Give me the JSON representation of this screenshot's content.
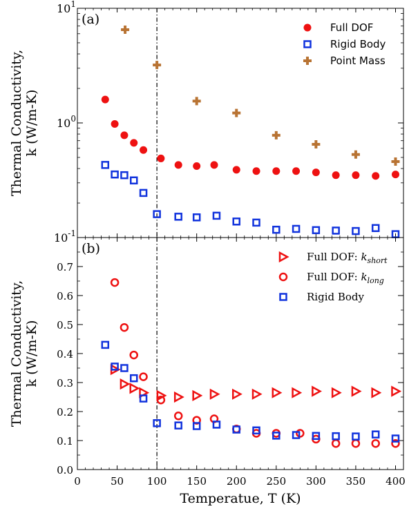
{
  "chart_data": [
    {
      "panel_label": "(a)",
      "type": "scatter",
      "yscale": "log",
      "xlim": [
        0,
        410
      ],
      "ylim": [
        0.1,
        10
      ],
      "ylabel_line1": "Thermal Conductivity,",
      "ylabel_line2": "k (W/m-K)",
      "yticks": [
        {
          "value": 10,
          "base": "10",
          "exp": "1"
        },
        {
          "value": 1,
          "base": "10",
          "exp": "0"
        },
        {
          "value": 0.1,
          "base": "10",
          "exp": "-1"
        }
      ],
      "vline_x": 100,
      "legend_position": "top-right",
      "series": [
        {
          "name": "Full DOF",
          "marker": "filled-circle",
          "color": "#ee1111",
          "x": [
            35,
            47,
            59,
            71,
            83,
            105,
            127,
            150,
            172,
            200,
            225,
            250,
            275,
            300,
            325,
            350,
            375,
            400
          ],
          "y": [
            1.6,
            0.98,
            0.78,
            0.67,
            0.58,
            0.49,
            0.43,
            0.42,
            0.43,
            0.39,
            0.38,
            0.38,
            0.38,
            0.37,
            0.35,
            0.35,
            0.345,
            0.355
          ]
        },
        {
          "name": "Rigid Body",
          "marker": "open-square",
          "color": "#1133dd",
          "x": [
            35,
            47,
            59,
            71,
            83,
            100,
            127,
            150,
            175,
            200,
            225,
            250,
            275,
            300,
            325,
            350,
            375,
            400
          ],
          "y": [
            0.43,
            0.355,
            0.35,
            0.315,
            0.245,
            0.16,
            0.152,
            0.15,
            0.155,
            0.138,
            0.135,
            0.117,
            0.119,
            0.116,
            0.115,
            0.114,
            0.121,
            0.107
          ]
        },
        {
          "name": "Point Mass",
          "marker": "plus",
          "color": "#b87333",
          "x": [
            60,
            100,
            150,
            200,
            250,
            300,
            350,
            400
          ],
          "y": [
            6.5,
            3.2,
            1.55,
            1.22,
            0.78,
            0.65,
            0.53,
            0.46
          ]
        }
      ]
    },
    {
      "panel_label": "(b)",
      "type": "scatter",
      "xlim": [
        0,
        410
      ],
      "ylim": [
        0.0,
        0.8
      ],
      "xlabel": "Temperatue, T (K)",
      "ylabel_line1": "Thermal Conductivity,",
      "ylabel_line2": "k (W/m-K)",
      "xticks": [
        "0",
        "50",
        "100",
        "150",
        "200",
        "250",
        "300",
        "350",
        "400"
      ],
      "yticks": [
        "0.0",
        "0.1",
        "0.2",
        "0.3",
        "0.4",
        "0.5",
        "0.6",
        "0.7"
      ],
      "vline_x": 100,
      "legend_position": "top-right",
      "series": [
        {
          "name": "Full DOF: k_short",
          "label_main": "Full DOF: ",
          "label_k": "k",
          "label_sub": "short",
          "marker": "open-triangle-right",
          "color": "#ee1111",
          "x": [
            47,
            59,
            71,
            83,
            105,
            127,
            150,
            172,
            200,
            225,
            250,
            275,
            300,
            325,
            350,
            375,
            400
          ],
          "y": [
            0.345,
            0.295,
            0.28,
            0.265,
            0.255,
            0.25,
            0.255,
            0.26,
            0.26,
            0.26,
            0.265,
            0.265,
            0.27,
            0.265,
            0.27,
            0.265,
            0.27
          ]
        },
        {
          "name": "Full DOF: k_long",
          "label_main": "Full DOF: ",
          "label_k": "k",
          "label_sub": "long",
          "marker": "open-circle",
          "color": "#ee1111",
          "x": [
            47,
            59,
            71,
            83,
            105,
            127,
            150,
            172,
            200,
            225,
            250,
            280,
            300,
            325,
            350,
            375,
            400
          ],
          "y": [
            0.645,
            0.49,
            0.395,
            0.32,
            0.24,
            0.185,
            0.17,
            0.175,
            0.14,
            0.125,
            0.125,
            0.125,
            0.105,
            0.09,
            0.09,
            0.09,
            0.09
          ]
        },
        {
          "name": "Rigid Body",
          "marker": "open-square",
          "color": "#1133dd",
          "x": [
            35,
            47,
            59,
            71,
            83,
            100,
            127,
            150,
            175,
            200,
            225,
            250,
            275,
            300,
            325,
            350,
            375,
            400
          ],
          "y": [
            0.43,
            0.355,
            0.35,
            0.315,
            0.245,
            0.16,
            0.152,
            0.15,
            0.155,
            0.138,
            0.135,
            0.117,
            0.119,
            0.116,
            0.115,
            0.114,
            0.121,
            0.107
          ]
        }
      ]
    }
  ]
}
